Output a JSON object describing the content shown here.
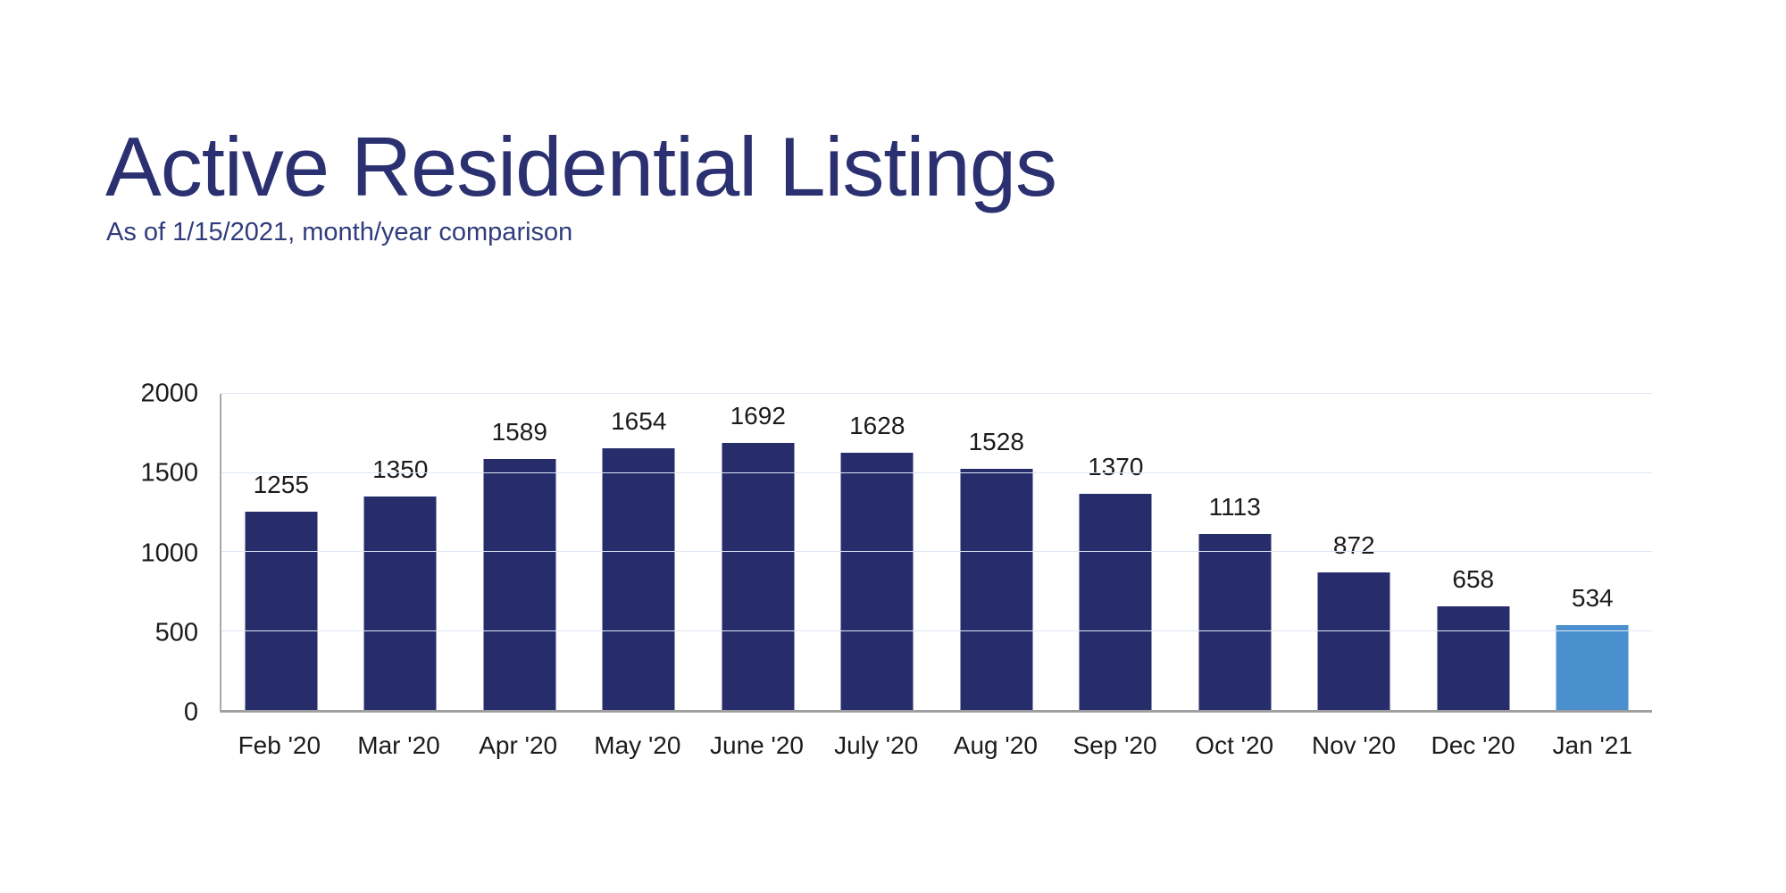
{
  "header": {
    "title": "Active Residential Listings",
    "subtitle": "As of 1/15/2021, month/year comparison",
    "title_color": "#2a3070",
    "subtitle_color": "#303c7c"
  },
  "chart_data": {
    "type": "bar",
    "title": "Active Residential Listings",
    "subtitle": "As of 1/15/2021, month/year comparison",
    "categories": [
      "Feb '20",
      "Mar '20",
      "Apr '20",
      "May '20",
      "June '20",
      "July '20",
      "Aug '20",
      "Sep '20",
      "Oct '20",
      "Nov '20",
      "Dec '20",
      "Jan '21"
    ],
    "values": [
      1255,
      1350,
      1589,
      1654,
      1692,
      1628,
      1528,
      1370,
      1113,
      872,
      658,
      534
    ],
    "xlabel": "",
    "ylabel": "",
    "ylim": [
      0,
      2000
    ],
    "yticks": [
      0,
      500,
      1000,
      1500,
      2000
    ],
    "grid": true,
    "legend": "none",
    "colors": {
      "bar_default": "#272d6b",
      "bar_highlight": "#4a90cf",
      "gridline": "#dde6f2",
      "axis": "#a5a5a5",
      "label_text": "#1b1b1b"
    },
    "highlight_index": 11
  }
}
